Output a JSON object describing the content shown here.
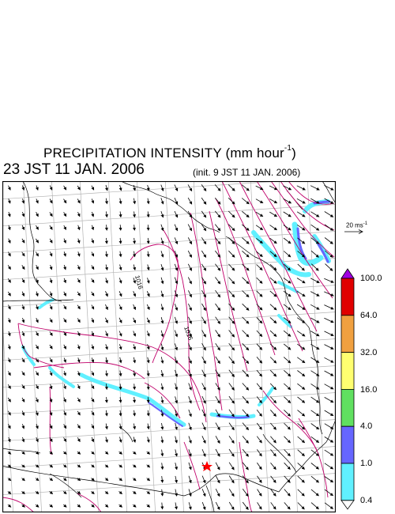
{
  "title": {
    "main": "PRECIPITATION INTENSITY (mm hour",
    "exponent": "-1",
    "close": ")"
  },
  "valid_time": "23 JST 11 JAN. 2006",
  "init_time": "(init. 9 JST 11 JAN. 2006)",
  "wind_scale": {
    "label": "20 ms",
    "exponent": "-1"
  },
  "legend": {
    "labels": [
      "100.0",
      "64.0",
      "32.0",
      "16.0",
      "4.0",
      "1.0",
      "0.4"
    ],
    "colors": [
      "#a000e0",
      "#e00000",
      "#f0a040",
      "#ffff70",
      "#60e060",
      "#6666ff",
      "#60f0ff",
      "#ffffff"
    ]
  },
  "isobar_labels": [
    "1016",
    "1016"
  ],
  "colors": {
    "isobar": "#c0006a",
    "coast": "#000000",
    "grid": "#b4b4b4",
    "marker": "#ff0000"
  }
}
